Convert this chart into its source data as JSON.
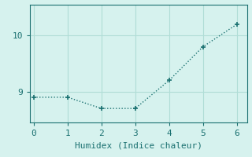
{
  "x": [
    0,
    1,
    2,
    3,
    4,
    5,
    6
  ],
  "y": [
    8.9,
    8.9,
    8.7,
    8.7,
    9.2,
    9.8,
    10.2
  ],
  "xlabel": "Humidex (Indice chaleur)",
  "line_color": "#1a7070",
  "marker_color": "#1a7070",
  "bg_color": "#d6f2ee",
  "grid_color": "#b0ddd6",
  "xlim": [
    -0.1,
    6.3
  ],
  "ylim": [
    8.45,
    10.55
  ],
  "yticks": [
    9,
    10
  ],
  "xticks": [
    0,
    1,
    2,
    3,
    4,
    5,
    6
  ],
  "font_color": "#1a7070",
  "font_size": 8,
  "xlabel_fontsize": 8,
  "spine_color": "#1a7070"
}
